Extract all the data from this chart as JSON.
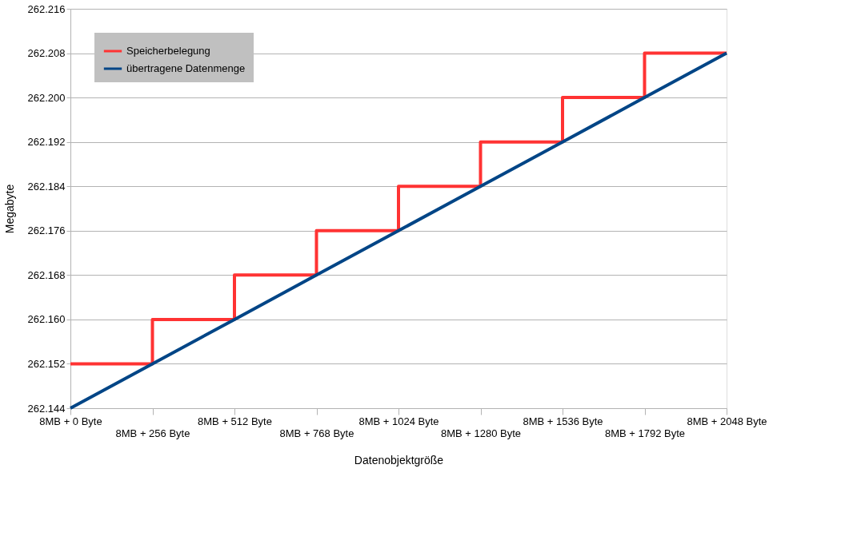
{
  "chart_data": {
    "type": "line",
    "xlabel": "Datenobjektgröße",
    "ylabel": "Megabyte",
    "categories": [
      "8MB + 0 Byte",
      "8MB + 256 Byte",
      "8MB + 512 Byte",
      "8MB + 768 Byte",
      "8MB + 1024 Byte",
      "8MB + 1280 Byte",
      "8MB + 1536 Byte",
      "8MB + 1792 Byte",
      "8MB + 2048 Byte"
    ],
    "series": [
      {
        "name": "Speicherbelegung",
        "type": "step",
        "color": "#ff3333",
        "values": [
          262.152,
          262.16,
          262.168,
          262.176,
          262.184,
          262.192,
          262.2,
          262.208,
          262.208
        ]
      },
      {
        "name": "übertragene Datenmenge",
        "color": "#004586",
        "values": [
          262.144,
          262.152,
          262.16,
          262.168,
          262.176,
          262.184,
          262.192,
          262.2,
          262.208
        ]
      }
    ],
    "ylim": [
      262.144,
      262.216
    ],
    "yticks": [
      262.144,
      262.152,
      {
        "value": 262.16,
        "label": "262.160"
      },
      262.168,
      262.176,
      262.184,
      262.192,
      {
        "value": 262.2,
        "label": "262.200"
      },
      262.208,
      262.216
    ],
    "grid": "y",
    "legend": "top left"
  }
}
